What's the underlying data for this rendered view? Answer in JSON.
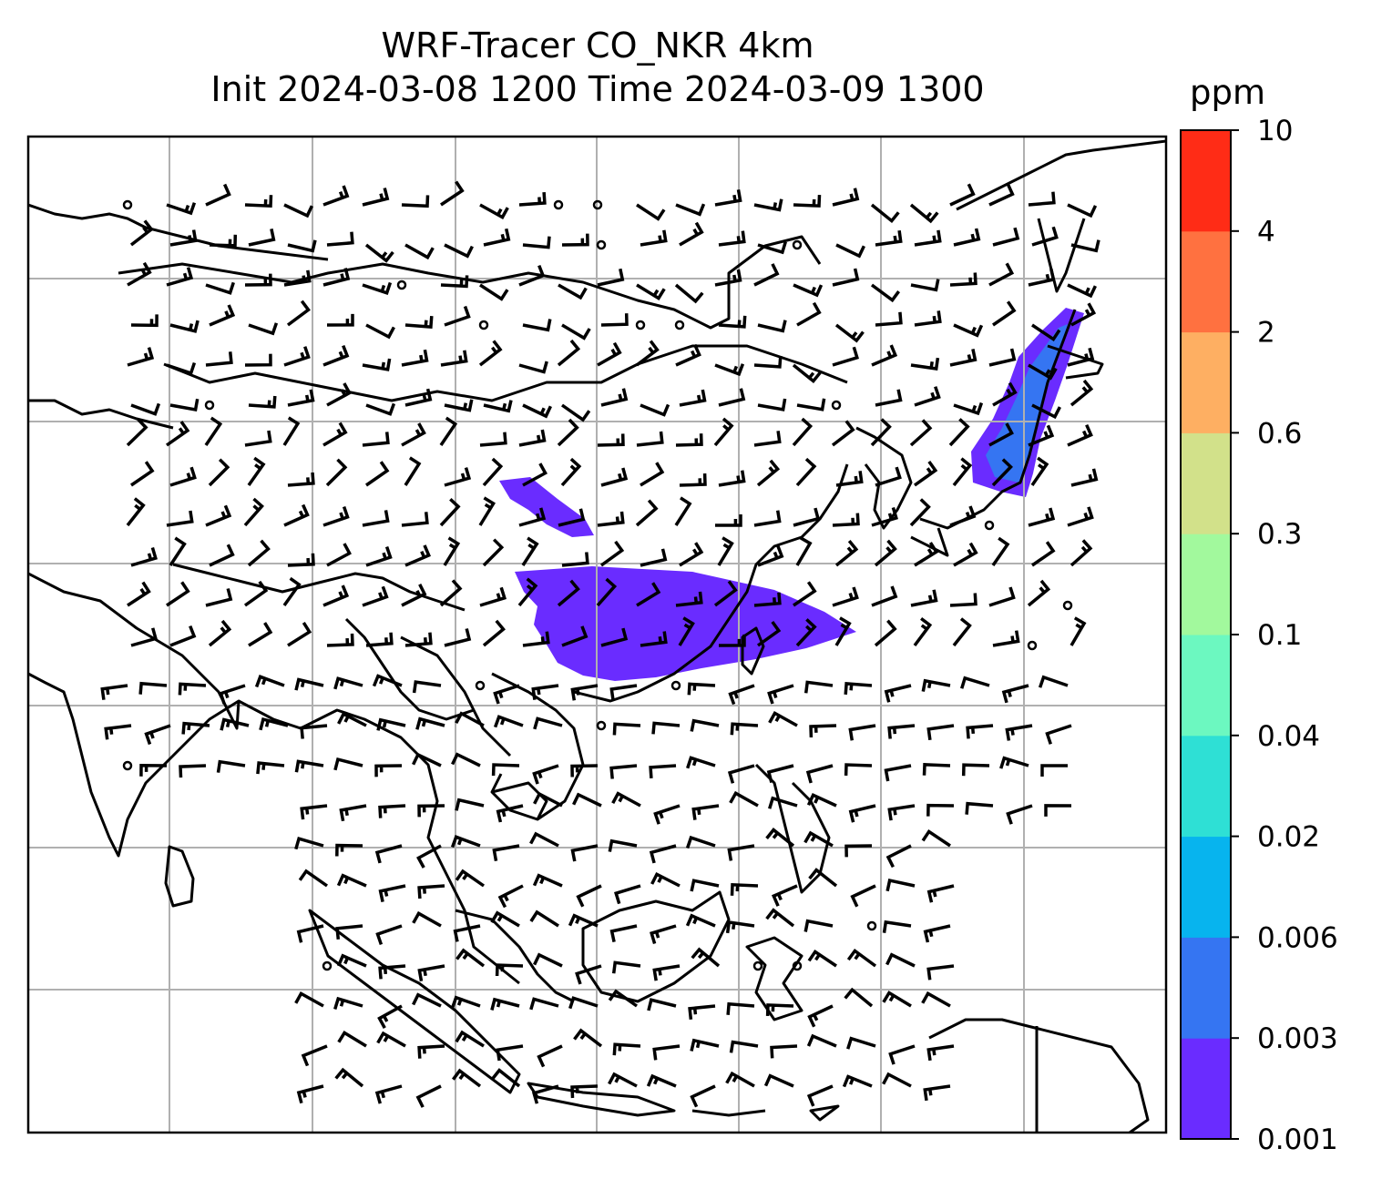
{
  "title": {
    "line1": "WRF-Tracer CO_NKR 4km",
    "line2": "Init 2024-03-08 1200 Time 2024-03-09 1300"
  },
  "colorbar": {
    "unit": "ppm",
    "ticks": [
      "0.001",
      "0.003",
      "0.006",
      "0.02",
      "0.04",
      "0.1",
      "0.3",
      "0.6",
      "2",
      "4",
      "10"
    ],
    "colors": [
      "#6a2cff",
      "#3575f2",
      "#07b4ee",
      "#2ee0d5",
      "#6cf8c0",
      "#a2f99d",
      "#d2e18a",
      "#feaf62",
      "#ff7140",
      "#ff2c16"
    ]
  },
  "plume_color": "#6a2cff",
  "plume_color_secondary": "#3575f2",
  "map": {
    "gridlines": true,
    "coastline_color": "#000000",
    "grid_color": "#b0b0b0",
    "wind_barbs": true
  }
}
